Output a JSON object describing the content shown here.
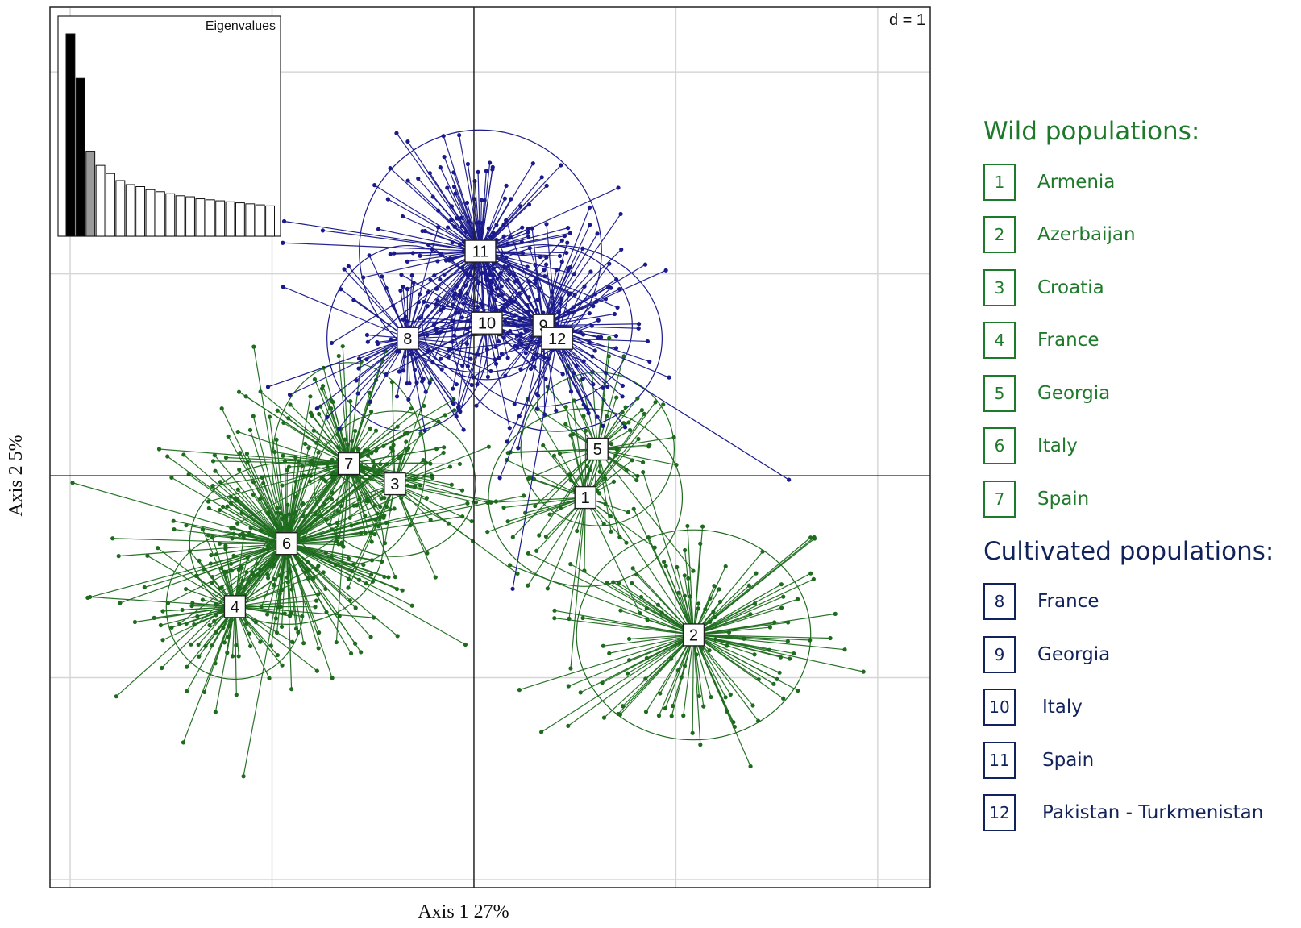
{
  "chart_data": {
    "type": "scatter",
    "title": "",
    "xlabel": "Axis 1 27%",
    "ylabel": "Axis 2 5%",
    "scale_label": "d = 1",
    "xlim": [
      -5.25,
      5.65
    ],
    "ylim": [
      -5.1,
      5.8
    ],
    "grid": true,
    "gridlines": [
      -5,
      -2.5,
      0,
      2.5,
      5
    ],
    "colors": {
      "wild": "#1e6b1e",
      "cultivated": "#1a1a8c"
    },
    "groups": [
      {
        "label": "1",
        "x": 1.38,
        "y": -0.27,
        "type": "wild",
        "spread": [
          0.95,
          1.3
        ],
        "ellipse": [
          1.2,
          1.1
        ],
        "n": 45
      },
      {
        "label": "2",
        "x": 2.72,
        "y": -1.97,
        "type": "wild",
        "spread": [
          1.6,
          1.3
        ],
        "ellipse": [
          1.45,
          1.3
        ],
        "n": 130
      },
      {
        "label": "3",
        "x": -0.98,
        "y": -0.1,
        "type": "wild",
        "spread": [
          0.9,
          0.9
        ],
        "ellipse": [
          1.0,
          0.9
        ],
        "n": 45
      },
      {
        "label": "4",
        "x": -2.96,
        "y": -1.62,
        "type": "wild",
        "spread": [
          1.0,
          0.8
        ],
        "ellipse": [
          0.85,
          0.9
        ],
        "n": 85
      },
      {
        "label": "5",
        "x": 1.53,
        "y": 0.33,
        "type": "wild",
        "spread": [
          0.85,
          0.95
        ],
        "ellipse": [
          0.95,
          0.95
        ],
        "n": 55
      },
      {
        "label": "6",
        "x": -2.32,
        "y": -0.84,
        "type": "wild",
        "spread": [
          1.5,
          1.2
        ],
        "ellipse": [
          1.2,
          1.0
        ],
        "n": 220
      },
      {
        "label": "7",
        "x": -1.55,
        "y": 0.15,
        "type": "wild",
        "spread": [
          1.3,
          1.25
        ],
        "ellipse": [
          0.95,
          1.25
        ],
        "n": 120
      },
      {
        "label": "8",
        "x": -0.82,
        "y": 1.7,
        "type": "cultivated",
        "spread": [
          0.95,
          0.95
        ],
        "ellipse": [
          1.0,
          1.15
        ],
        "n": 80
      },
      {
        "label": "9",
        "x": 0.86,
        "y": 1.86,
        "type": "cultivated",
        "spread": [
          1.1,
          1.1
        ],
        "ellipse": [
          1.1,
          1.0
        ],
        "n": 120
      },
      {
        "label": "10",
        "x": 0.16,
        "y": 1.89,
        "type": "cultivated",
        "spread": [
          0.9,
          0.8
        ],
        "ellipse": [
          0.8,
          0.7
        ],
        "n": 50
      },
      {
        "label": "11",
        "x": 0.08,
        "y": 2.78,
        "type": "cultivated",
        "spread": [
          1.05,
          1.05
        ],
        "ellipse": [
          1.5,
          1.5
        ],
        "n": 160
      },
      {
        "label": "12",
        "x": 1.03,
        "y": 1.7,
        "type": "cultivated",
        "spread": [
          0.9,
          0.95
        ],
        "ellipse": [
          1.3,
          1.15
        ],
        "n": 40
      }
    ],
    "eigenvalues": {
      "title": "Eigenvalues",
      "values": [
        10,
        7.8,
        4.2,
        3.5,
        3.1,
        2.75,
        2.55,
        2.45,
        2.3,
        2.2,
        2.1,
        2.0,
        1.95,
        1.85,
        1.8,
        1.75,
        1.7,
        1.65,
        1.6,
        1.55,
        1.5
      ],
      "highlighted": [
        2,
        0
      ]
    }
  },
  "legend": {
    "wild_title": "Wild populations:",
    "cultivated_title": "Cultivated populations:",
    "wild": [
      {
        "num": "1",
        "name": "Armenia"
      },
      {
        "num": "2",
        "name": "Azerbaijan"
      },
      {
        "num": "3",
        "name": "Croatia"
      },
      {
        "num": "4",
        "name": "France"
      },
      {
        "num": "5",
        "name": "Georgia"
      },
      {
        "num": "6",
        "name": "Italy"
      },
      {
        "num": "7",
        "name": "Spain"
      }
    ],
    "cultivated": [
      {
        "num": "8",
        "name": "France"
      },
      {
        "num": "9",
        "name": "Georgia"
      },
      {
        "num": "10",
        "name": "Italy"
      },
      {
        "num": "11",
        "name": "Spain"
      },
      {
        "num": "12",
        "name": "Pakistan - Turkmenistan"
      }
    ]
  }
}
